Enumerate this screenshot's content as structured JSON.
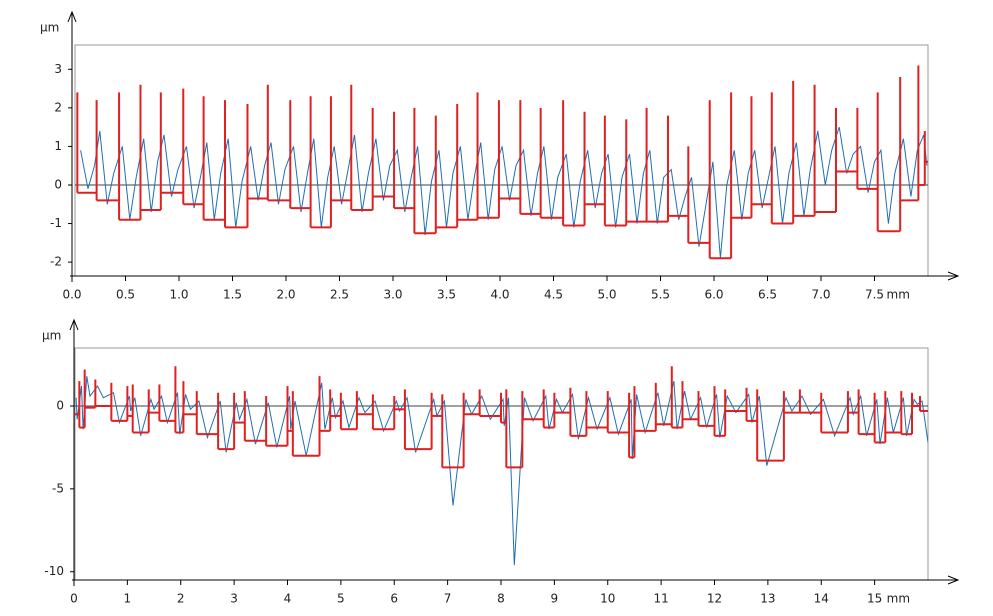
{
  "chart_data": [
    {
      "type": "line",
      "ylabel": "µm",
      "xlabel": "mm",
      "xlim": [
        0,
        8.0
      ],
      "ylim": [
        -2.36,
        3.63
      ],
      "xticks": [
        {
          "value": 0,
          "label": "0.0"
        },
        0.5,
        {
          "value": 1,
          "label": "1.0"
        },
        1.5,
        {
          "value": 2,
          "label": "2.0"
        },
        2.5,
        {
          "value": 3,
          "label": "3.0"
        },
        3.5,
        {
          "value": 4,
          "label": "4.0"
        },
        4.5,
        {
          "value": 5,
          "label": "5.0"
        },
        5.5,
        {
          "value": 6,
          "label": "6.0"
        },
        6.5,
        {
          "value": 7,
          "label": "7.0"
        },
        7.5
      ],
      "yticks": [
        -2,
        -1,
        0,
        1,
        2,
        3
      ],
      "series": [
        {
          "color": "#1f6fb5",
          "x": [
            0.08,
            0.15,
            0.21,
            0.26,
            0.33,
            0.39,
            0.47,
            0.54,
            0.6,
            0.67,
            0.74,
            0.8,
            0.86,
            0.93,
            0.99,
            1.07,
            1.14,
            1.2,
            1.26,
            1.33,
            1.39,
            1.46,
            1.53,
            1.59,
            1.67,
            1.74,
            1.8,
            1.86,
            1.93,
            1.99,
            2.07,
            2.14,
            2.2,
            2.26,
            2.33,
            2.39,
            2.45,
            2.52,
            2.58,
            2.64,
            2.71,
            2.77,
            2.84,
            2.91,
            2.97,
            3.04,
            3.11,
            3.17,
            3.23,
            3.3,
            3.36,
            3.43,
            3.5,
            3.56,
            3.63,
            3.7,
            3.76,
            3.82,
            3.89,
            3.95,
            4.02,
            4.09,
            4.15,
            4.22,
            4.29,
            4.35,
            4.41,
            4.48,
            4.54,
            4.62,
            4.69,
            4.75,
            4.82,
            4.89,
            4.95,
            5.01,
            5.08,
            5.14,
            5.21,
            5.28,
            5.34,
            5.4,
            5.47,
            5.53,
            5.6,
            5.67,
            5.73,
            5.79,
            5.86,
            5.92,
            5.99,
            6.06,
            6.12,
            6.19,
            6.26,
            6.32,
            6.38,
            6.45,
            6.51,
            6.57,
            6.64,
            6.7,
            6.77,
            6.84,
            6.9,
            6.97,
            7.04,
            7.1,
            7.17,
            7.24,
            7.3,
            7.37,
            7.44,
            7.5,
            7.56,
            7.63,
            7.69,
            7.77,
            7.84,
            7.9,
            7.96,
            7.99
          ],
          "values": [
            0.9,
            -0.1,
            0.5,
            1.4,
            -0.5,
            0.3,
            1.0,
            -0.9,
            0.2,
            1.2,
            -0.7,
            0.6,
            1.3,
            -0.3,
            0.4,
            1.0,
            -0.6,
            0.2,
            1.1,
            -0.9,
            0.3,
            1.2,
            -1.1,
            0.1,
            1.0,
            -0.4,
            0.5,
            1.1,
            -0.5,
            0.4,
            1.0,
            -0.7,
            0.3,
            1.2,
            -1.1,
            0.2,
            1.0,
            -0.5,
            0.4,
            1.3,
            -0.7,
            0.3,
            1.2,
            -0.4,
            0.5,
            0.9,
            -0.7,
            0.2,
            1.0,
            -1.3,
            0.1,
            0.9,
            -1.1,
            0.3,
            1.0,
            -0.9,
            0.2,
            1.1,
            -0.9,
            0.4,
            1.0,
            -0.4,
            0.5,
            0.9,
            -0.8,
            0.3,
            1.0,
            -0.9,
            0.2,
            0.8,
            -1.1,
            0.1,
            0.9,
            -0.6,
            0.3,
            0.8,
            -1.1,
            0.2,
            0.8,
            -1.0,
            0.3,
            0.9,
            -1.0,
            0.2,
            0.4,
            -0.9,
            -0.3,
            0.2,
            -1.6,
            -0.6,
            0.6,
            -1.9,
            0.0,
            0.9,
            -0.9,
            0.3,
            0.9,
            -0.6,
            0.2,
            1.0,
            -1.0,
            0.3,
            1.1,
            -0.8,
            0.4,
            1.4,
            0.0,
            0.9,
            1.5,
            0.3,
            0.8,
            1.0,
            -0.2,
            0.6,
            0.9,
            -1.0,
            0.3,
            1.2,
            -0.3,
            0.9,
            1.3,
            0.5
          ]
        },
        {
          "color": "#e02020",
          "starts": [
            0.05,
            0.23,
            0.44,
            0.64,
            0.83,
            1.04,
            1.23,
            1.43,
            1.64,
            1.83,
            2.04,
            2.23,
            2.42,
            2.61,
            2.81,
            3.01,
            3.2,
            3.4,
            3.6,
            3.79,
            3.99,
            4.19,
            4.38,
            4.59,
            4.79,
            4.98,
            5.18,
            5.37,
            5.57,
            5.76,
            5.96,
            6.16,
            6.35,
            6.54,
            6.74,
            6.94,
            7.14,
            7.34,
            7.53,
            7.74,
            7.91,
            7.97
          ],
          "levels": [
            -0.2,
            -0.4,
            -0.9,
            -0.65,
            -0.2,
            -0.5,
            -0.9,
            -1.1,
            -0.35,
            -0.4,
            -0.6,
            -1.1,
            -0.4,
            -0.65,
            -0.3,
            -0.6,
            -1.25,
            -1.1,
            -0.9,
            -0.85,
            -0.35,
            -0.75,
            -0.85,
            -1.05,
            -0.5,
            -1.05,
            -0.95,
            -0.95,
            -0.8,
            -1.5,
            -1.9,
            -0.85,
            -0.5,
            -1.0,
            -0.8,
            -0.7,
            0.35,
            -0.1,
            -1.2,
            -0.4,
            0.0,
            0.6
          ],
          "peaks": [
            2.4,
            2.2,
            2.4,
            2.6,
            2.4,
            2.5,
            2.3,
            2.2,
            2.1,
            2.6,
            2.2,
            2.3,
            2.3,
            2.6,
            2.0,
            1.9,
            2.0,
            1.8,
            2.1,
            2.4,
            2.2,
            2.2,
            2.0,
            2.2,
            1.9,
            1.8,
            1.7,
            2.0,
            1.8,
            1.0,
            2.2,
            2.4,
            2.3,
            2.4,
            2.7,
            2.6,
            2.0,
            2.0,
            2.4,
            2.8,
            3.1,
            1.4
          ]
        }
      ]
    },
    {
      "type": "line",
      "ylabel": "µm",
      "xlabel": "mm",
      "xlim": [
        0,
        16
      ],
      "ylim": [
        -10.5,
        3.5
      ],
      "xticks": [
        0,
        1,
        2,
        3,
        4,
        5,
        6,
        7,
        8,
        9,
        10,
        11,
        12,
        13,
        14,
        15
      ],
      "yticks": [
        -10,
        -5,
        0
      ],
      "series": [
        {
          "color": "#1f6fb5",
          "x": [
            0.04,
            0.06,
            0.14,
            0.17,
            0.24,
            0.3,
            0.44,
            0.55,
            0.74,
            0.85,
            1.04,
            1.06,
            1.14,
            1.25,
            1.44,
            1.5,
            1.64,
            1.75,
            1.94,
            1.98,
            2.09,
            2.18,
            2.34,
            2.5,
            2.74,
            2.85,
            3.04,
            3.1,
            3.24,
            3.4,
            3.64,
            3.8,
            4.04,
            4.06,
            4.14,
            4.35,
            4.64,
            4.7,
            4.84,
            4.9,
            5.04,
            5.15,
            5.34,
            5.45,
            5.64,
            5.8,
            6.04,
            6.1,
            6.24,
            6.4,
            6.74,
            6.8,
            6.94,
            7.1,
            7.34,
            7.45,
            7.64,
            7.8,
            8.04,
            8.06,
            8.14,
            8.25,
            8.44,
            8.6,
            8.84,
            8.9,
            9.04,
            9.15,
            9.34,
            9.45,
            9.64,
            9.8,
            10.04,
            10.2,
            10.44,
            10.46,
            10.54,
            10.7,
            10.94,
            11.05,
            11.24,
            11.3,
            11.44,
            11.55,
            11.74,
            11.85,
            12.04,
            12.1,
            12.24,
            12.4,
            12.64,
            12.7,
            12.84,
            12.98,
            13.34,
            13.45,
            13.64,
            13.8,
            14.04,
            14.25,
            14.54,
            14.6,
            14.74,
            14.85,
            15.04,
            15.1,
            15.24,
            15.35,
            15.54,
            15.6,
            15.74,
            15.8,
            15.89,
            16.0
          ],
          "values": [
            0.5,
            -0.8,
            1.2,
            -1.4,
            1.8,
            0.6,
            1.2,
            0.5,
            0.8,
            -1.0,
            0.6,
            -0.3,
            0.5,
            -1.8,
            0.4,
            -0.2,
            0.6,
            -1.0,
            0.8,
            -1.7,
            0.7,
            -0.2,
            0.3,
            -1.9,
            0.3,
            -2.8,
            0.2,
            -0.8,
            0.4,
            -2.3,
            0.2,
            -2.5,
            0.6,
            -1.4,
            0.3,
            -3.0,
            1.4,
            -1.4,
            0.5,
            -0.7,
            0.3,
            -1.3,
            0.5,
            -0.4,
            0.3,
            -1.5,
            0.3,
            -0.3,
            0.5,
            -2.8,
            0.4,
            -0.6,
            0.3,
            -6.0,
            0.4,
            -0.5,
            0.6,
            -0.8,
            0.4,
            -1.2,
            0.5,
            -9.6,
            0.5,
            -0.9,
            0.6,
            -1.4,
            0.4,
            -0.4,
            0.7,
            -2.0,
            0.5,
            -1.4,
            0.5,
            -1.7,
            0.4,
            -3.2,
            0.7,
            -1.6,
            0.8,
            -1.2,
            1.5,
            -1.4,
            0.9,
            -0.8,
            0.5,
            -1.3,
            0.7,
            -1.9,
            0.6,
            -0.4,
            0.7,
            -1.0,
            0.6,
            -3.6,
            0.5,
            -0.3,
            0.6,
            -0.5,
            0.4,
            -1.8,
            0.5,
            -0.5,
            0.6,
            -1.8,
            0.4,
            -2.3,
            0.5,
            -1.6,
            0.5,
            -1.8,
            0.4,
            0.1,
            0.3,
            -2.2
          ]
        },
        {
          "color": "#e02020",
          "starts": [
            0.0,
            0.1,
            0.2,
            0.4,
            0.7,
            1.0,
            1.1,
            1.4,
            1.6,
            1.9,
            2.05,
            2.3,
            2.7,
            3.0,
            3.2,
            3.6,
            4.0,
            4.1,
            4.6,
            4.8,
            5.0,
            5.3,
            5.6,
            6.0,
            6.2,
            6.7,
            6.9,
            7.3,
            7.6,
            8.0,
            8.1,
            8.4,
            8.8,
            9.0,
            9.3,
            9.6,
            10.0,
            10.4,
            10.5,
            10.9,
            11.2,
            11.4,
            11.7,
            12.0,
            12.2,
            12.6,
            12.8,
            13.3,
            13.6,
            14.0,
            14.5,
            14.7,
            15.0,
            15.2,
            15.5,
            15.7,
            15.85
          ],
          "levels": [
            -0.5,
            -1.3,
            -0.1,
            0.0,
            -0.9,
            -0.6,
            -1.6,
            -0.4,
            -0.9,
            -1.6,
            -0.5,
            -1.7,
            -2.6,
            -1.0,
            -2.1,
            -2.4,
            -1.5,
            -3.0,
            -1.5,
            -0.6,
            -1.4,
            -0.5,
            -1.4,
            -0.2,
            -2.6,
            -0.6,
            -3.7,
            -0.5,
            -0.6,
            -1.0,
            -3.7,
            -0.8,
            -1.3,
            -0.4,
            -1.8,
            -1.3,
            -1.6,
            -3.1,
            -1.5,
            -1.1,
            -1.3,
            -0.8,
            -1.2,
            -1.8,
            -0.3,
            -0.9,
            -3.3,
            -0.4,
            -0.4,
            -1.6,
            -0.4,
            -1.7,
            -2.2,
            -1.6,
            -1.7,
            0.0,
            -0.3
          ],
          "peaks": [
            1.0,
            1.5,
            2.2,
            1.6,
            1.4,
            1.2,
            1.3,
            1.0,
            1.3,
            2.4,
            1.5,
            0.9,
            0.8,
            0.8,
            0.9,
            0.6,
            1.2,
            0.9,
            1.8,
            1.0,
            0.8,
            0.9,
            0.7,
            0.6,
            1.0,
            0.8,
            0.7,
            0.8,
            1.0,
            0.8,
            1.0,
            0.9,
            1.0,
            0.8,
            1.1,
            0.9,
            0.9,
            0.8,
            1.2,
            1.4,
            2.4,
            1.5,
            0.9,
            1.2,
            1.0,
            1.1,
            1.0,
            0.9,
            1.0,
            0.8,
            0.9,
            1.0,
            0.8,
            0.9,
            0.9,
            0.8,
            0.6
          ]
        }
      ]
    }
  ]
}
